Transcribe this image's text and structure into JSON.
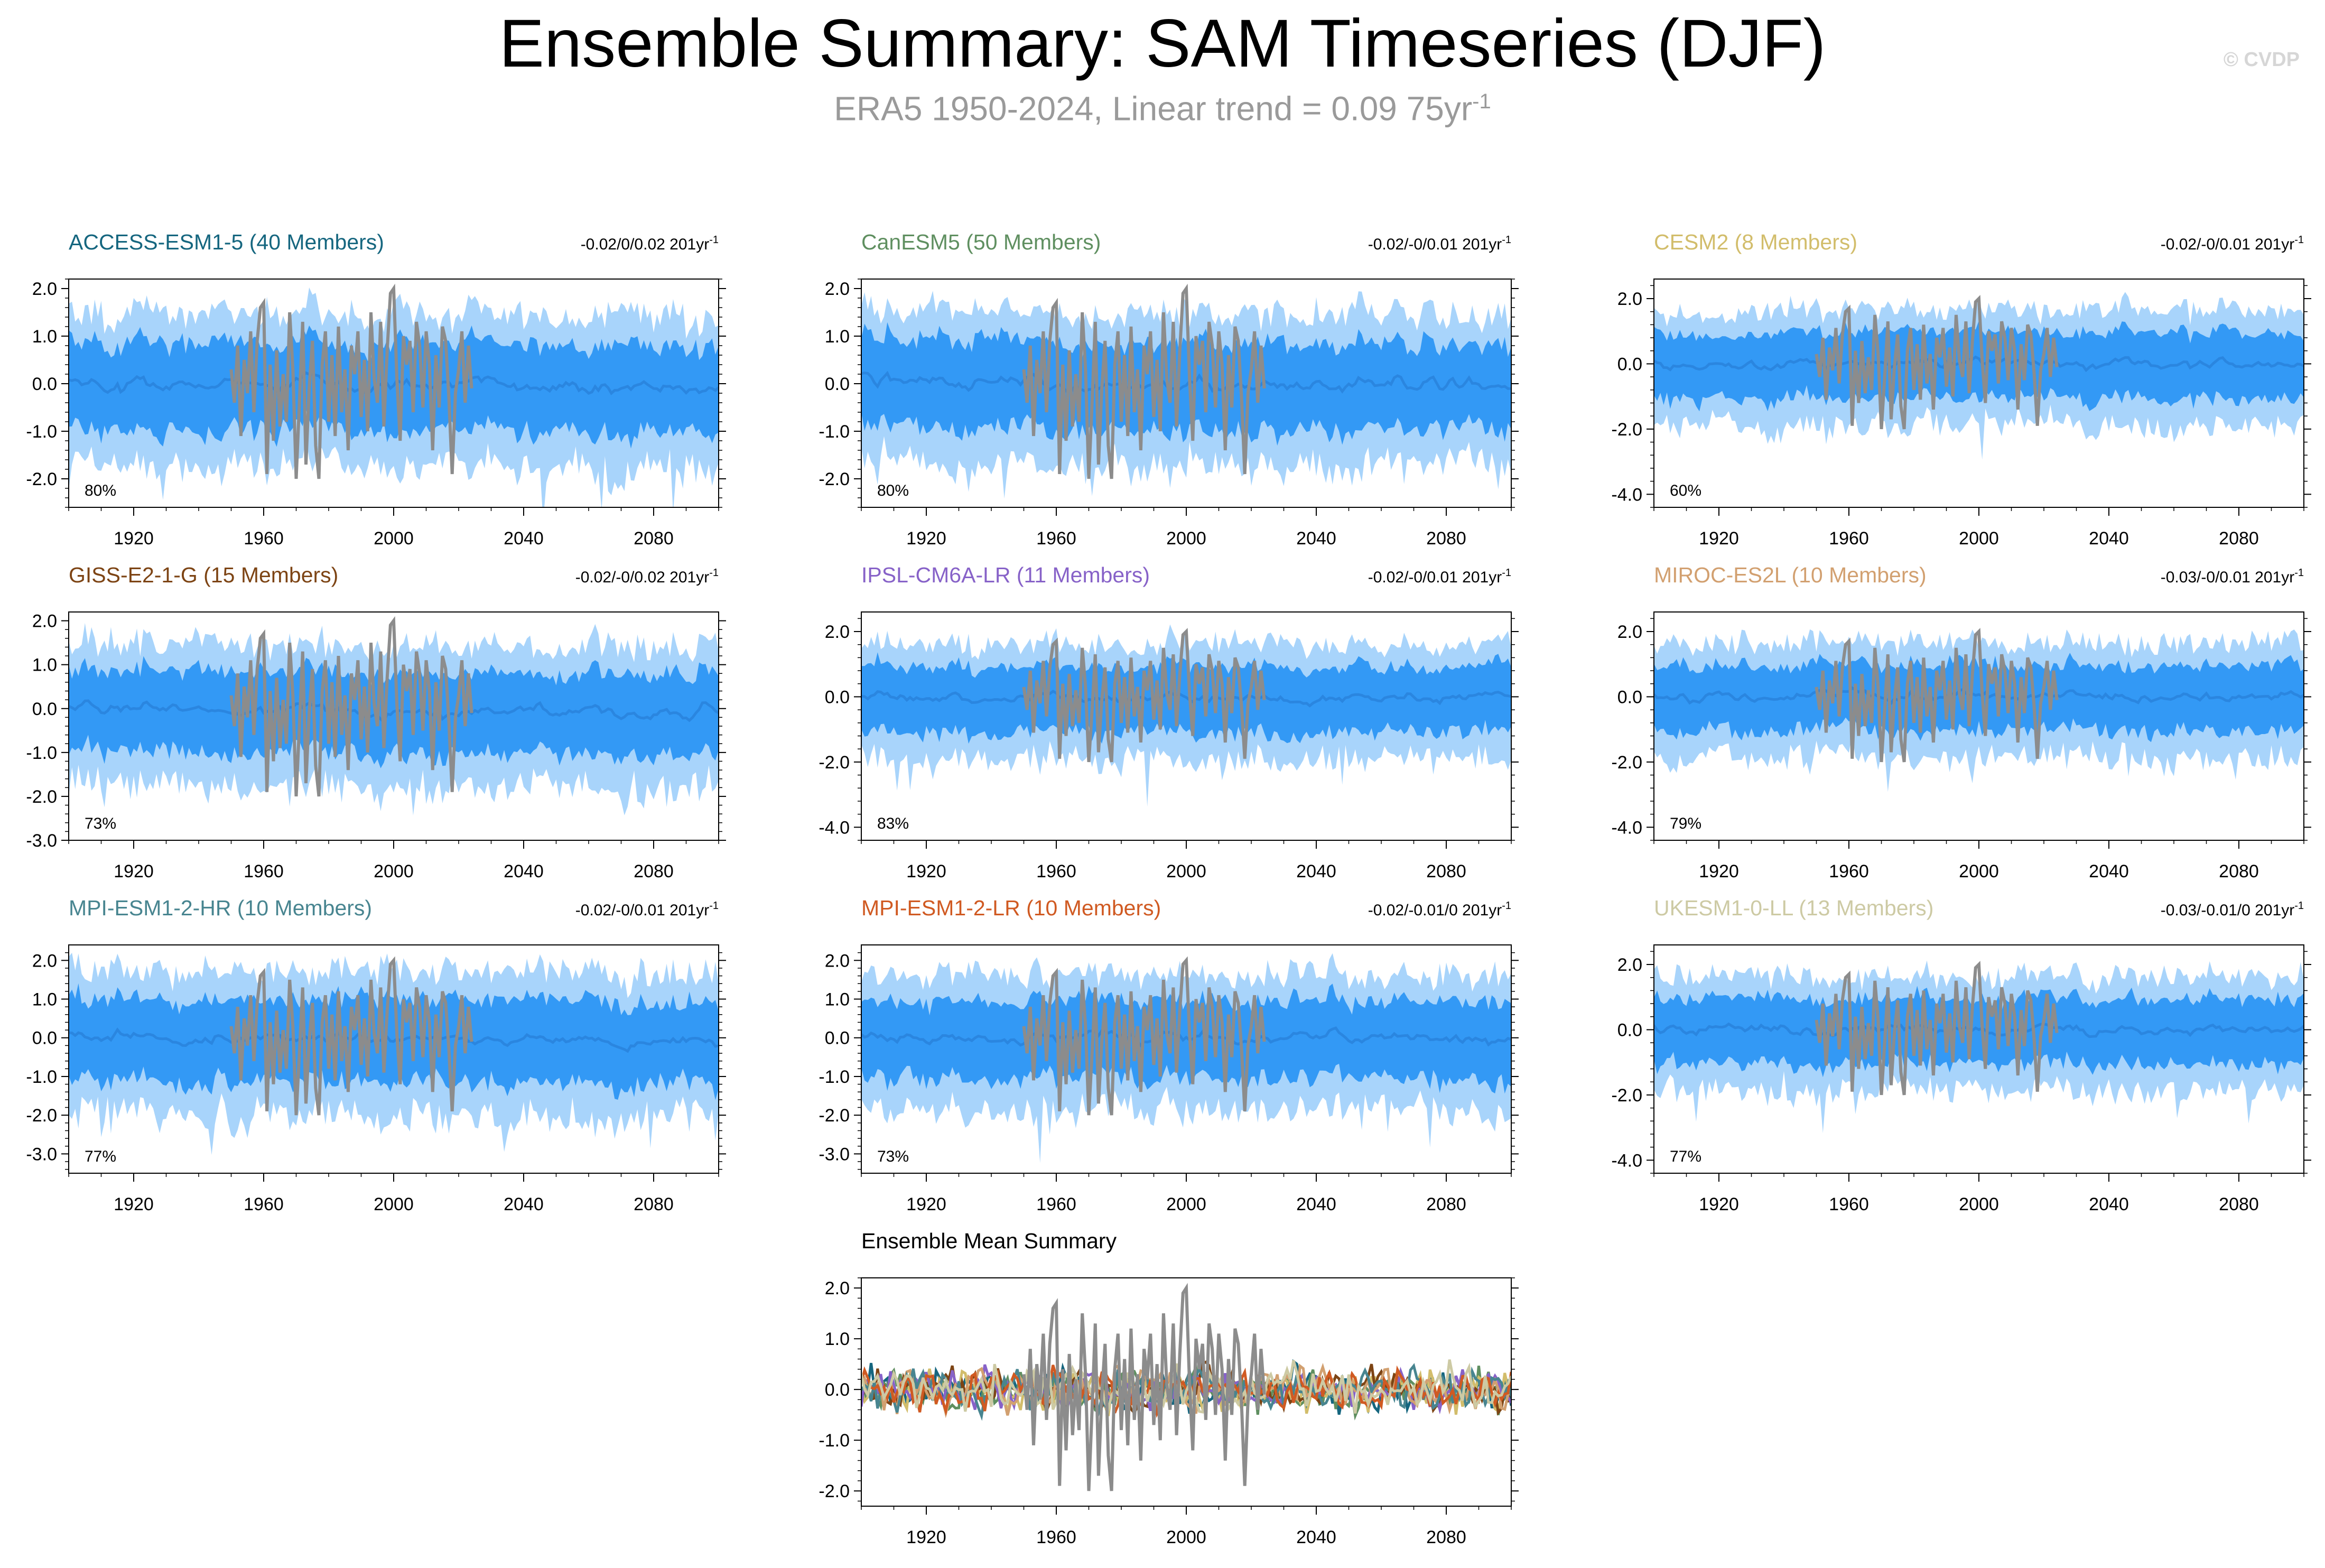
{
  "header": {
    "title": "Ensemble Summary: SAM Timeseries (DJF)",
    "subtitle_main": "ERA5 1950-2024, Linear trend = 0.09 75yr",
    "subtitle_exp": "-1",
    "watermark": "© CVDP"
  },
  "colors": {
    "band_outer": "#a8d4fb",
    "band_inner": "#3399f5",
    "ensemble_mean": "#2a86e0",
    "observations": "#8c8c8c",
    "axis": "#000000"
  },
  "trend_unit_exp": "-1",
  "chart_data": [
    {
      "type": "area",
      "name": "ACCESS-ESM1-5",
      "title": "ACCESS-ESM1-5 (40 Members)",
      "title_color": "#15667f",
      "trend": "-0.02/0/0.02 201yr",
      "percent": "80%",
      "xlim": [
        1900,
        2100
      ],
      "ylim": [
        -2.6,
        2.2
      ],
      "yticks": [
        2,
        1,
        0,
        -1,
        -2
      ],
      "ytick_labels": [
        "2.0",
        "1.0",
        "0.0",
        "-1.0",
        "-2.0"
      ],
      "xticks": [
        1920,
        1960,
        2000,
        2040,
        2080
      ],
      "xtick_labels": [
        "1920",
        "1960",
        "2000",
        "2040",
        "2080"
      ],
      "spread": 1.0,
      "drift": -0.05,
      "bias": 0.0
    },
    {
      "type": "area",
      "name": "CanESM5",
      "title": "CanESM5 (50 Members)",
      "title_color": "#5f8f60",
      "trend": "-0.02/-0/0.01 201yr",
      "percent": "80%",
      "xlim": [
        1900,
        2100
      ],
      "ylim": [
        -2.6,
        2.2
      ],
      "yticks": [
        2,
        1,
        0,
        -1,
        -2
      ],
      "ytick_labels": [
        "2.0",
        "1.0",
        "0.0",
        "-1.0",
        "-2.0"
      ],
      "xticks": [
        1920,
        1960,
        2000,
        2040,
        2080
      ],
      "xtick_labels": [
        "1920",
        "1960",
        "2000",
        "2040",
        "2080"
      ],
      "spread": 1.0,
      "drift": -0.2,
      "bias": 0.1
    },
    {
      "type": "area",
      "name": "CESM2",
      "title": "CESM2 (8 Members)",
      "title_color": "#d2bd6b",
      "trend": "-0.02/-0/0.01 201yr",
      "percent": "60%",
      "xlim": [
        1900,
        2100
      ],
      "ylim": [
        -4.4,
        2.6
      ],
      "yticks": [
        2,
        0,
        -2,
        -4
      ],
      "ytick_labels": [
        "2.0",
        "0.0",
        "-2.0",
        "-4.0"
      ],
      "xticks": [
        1920,
        1960,
        2000,
        2040,
        2080
      ],
      "xtick_labels": [
        "1920",
        "1960",
        "2000",
        "2040",
        "2080"
      ],
      "spread": 1.1,
      "drift": 0.0,
      "bias": 0.0
    },
    {
      "type": "area",
      "name": "GISS-E2-1-G",
      "title": "GISS-E2-1-G (15 Members)",
      "title_color": "#7d4414",
      "trend": "-0.02/-0/0.02 201yr",
      "percent": "73%",
      "xlim": [
        1900,
        2100
      ],
      "ylim": [
        -3.0,
        2.2
      ],
      "yticks": [
        2,
        1,
        0,
        -1,
        -2,
        -3
      ],
      "ytick_labels": [
        "2.0",
        "1.0",
        "0.0",
        "-1.0",
        "-2.0",
        "-3.0"
      ],
      "xticks": [
        1920,
        1960,
        2000,
        2040,
        2080
      ],
      "xtick_labels": [
        "1920",
        "1960",
        "2000",
        "2040",
        "2080"
      ],
      "spread": 1.0,
      "drift": -0.1,
      "bias": 0.0
    },
    {
      "type": "area",
      "name": "IPSL-CM6A-LR",
      "title": "IPSL-CM6A-LR (11 Members)",
      "title_color": "#8762c8",
      "trend": "-0.02/-0/0.01 201yr",
      "percent": "83%",
      "xlim": [
        1900,
        2100
      ],
      "ylim": [
        -4.4,
        2.6
      ],
      "yticks": [
        2,
        0,
        -2,
        -4
      ],
      "ytick_labels": [
        "2.0",
        "0.0",
        "-2.0",
        "-4.0"
      ],
      "xticks": [
        1920,
        1960,
        2000,
        2040,
        2080
      ],
      "xtick_labels": [
        "1920",
        "1960",
        "2000",
        "2040",
        "2080"
      ],
      "spread": 1.1,
      "drift": -0.05,
      "bias": 0.0
    },
    {
      "type": "area",
      "name": "MIROC-ES2L",
      "title": "MIROC-ES2L (10 Members)",
      "title_color": "#d2a070",
      "trend": "-0.03/-0/0.01 201yr",
      "percent": "79%",
      "xlim": [
        1900,
        2100
      ],
      "ylim": [
        -4.4,
        2.6
      ],
      "yticks": [
        2,
        0,
        -2,
        -4
      ],
      "ytick_labels": [
        "2.0",
        "0.0",
        "-2.0",
        "-4.0"
      ],
      "xticks": [
        1920,
        1960,
        2000,
        2040,
        2080
      ],
      "xtick_labels": [
        "1920",
        "1960",
        "2000",
        "2040",
        "2080"
      ],
      "spread": 1.1,
      "drift": 0.0,
      "bias": 0.0
    },
    {
      "type": "area",
      "name": "MPI-ESM1-2-HR",
      "title": "MPI-ESM1-2-HR (10 Members)",
      "title_color": "#488590",
      "trend": "-0.02/-0/0.01 201yr",
      "percent": "77%",
      "xlim": [
        1900,
        2100
      ],
      "ylim": [
        -3.5,
        2.4
      ],
      "yticks": [
        2,
        1,
        0,
        -1,
        -2,
        -3
      ],
      "ytick_labels": [
        "2.0",
        "1.0",
        "0.0",
        "-1.0",
        "-2.0",
        "-3.0"
      ],
      "xticks": [
        1920,
        1960,
        2000,
        2040,
        2080
      ],
      "xtick_labels": [
        "1920",
        "1960",
        "2000",
        "2040",
        "2080"
      ],
      "spread": 1.15,
      "drift": -0.05,
      "bias": 0.0
    },
    {
      "type": "area",
      "name": "MPI-ESM1-2-LR",
      "title": "MPI-ESM1-2-LR (10 Members)",
      "title_color": "#d05a22",
      "trend": "-0.02/-0.01/0 201yr",
      "percent": "73%",
      "xlim": [
        1900,
        2100
      ],
      "ylim": [
        -3.5,
        2.4
      ],
      "yticks": [
        2,
        1,
        0,
        -1,
        -2,
        -3
      ],
      "ytick_labels": [
        "2.0",
        "1.0",
        "0.0",
        "-1.0",
        "-2.0",
        "-3.0"
      ],
      "xticks": [
        1920,
        1960,
        2000,
        2040,
        2080
      ],
      "xtick_labels": [
        "1920",
        "1960",
        "2000",
        "2040",
        "2080"
      ],
      "spread": 1.1,
      "drift": -0.05,
      "bias": 0.0
    },
    {
      "type": "area",
      "name": "UKESM1-0-LL",
      "title": "UKESM1-0-LL (13 Members)",
      "title_color": "#cdcaa4",
      "trend": "-0.03/-0.01/0 201yr",
      "percent": "77%",
      "xlim": [
        1900,
        2100
      ],
      "ylim": [
        -4.4,
        2.6
      ],
      "yticks": [
        2,
        0,
        -2,
        -4
      ],
      "ytick_labels": [
        "2.0",
        "0.0",
        "-2.0",
        "-4.0"
      ],
      "xticks": [
        1920,
        1960,
        2000,
        2040,
        2080
      ],
      "xtick_labels": [
        "1920",
        "1960",
        "2000",
        "2040",
        "2080"
      ],
      "spread": 1.1,
      "drift": -0.1,
      "bias": 0.05
    },
    {
      "type": "line",
      "name": "Ensemble Mean Summary",
      "title": "Ensemble Mean Summary",
      "title_color": "#000000",
      "xlim": [
        1900,
        2100
      ],
      "ylim": [
        -2.3,
        2.2
      ],
      "yticks": [
        2,
        1,
        0,
        -1,
        -2
      ],
      "ytick_labels": [
        "2.0",
        "1.0",
        "0.0",
        "-1.0",
        "-2.0"
      ],
      "xticks": [
        1920,
        1960,
        2000,
        2040,
        2080
      ],
      "xtick_labels": [
        "1920",
        "1960",
        "2000",
        "2040",
        "2080"
      ],
      "series_names": [
        "ACCESS-ESM1-5",
        "CanESM5",
        "CESM2",
        "GISS-E2-1-G",
        "IPSL-CM6A-LR",
        "MIROC-ES2L",
        "MPI-ESM1-2-HR",
        "MPI-ESM1-2-LR",
        "UKESM1-0-LL",
        "ERA5"
      ],
      "series_colors": [
        "#15667f",
        "#5f8f60",
        "#d2bd6b",
        "#7d4414",
        "#8762c8",
        "#d2a070",
        "#488590",
        "#d05a22",
        "#cdcaa4",
        "#8c8c8c"
      ]
    }
  ],
  "observations": {
    "name": "ERA5",
    "years": [
      1950,
      1951,
      1952,
      1953,
      1954,
      1955,
      1956,
      1957,
      1958,
      1959,
      1960,
      1961,
      1962,
      1963,
      1964,
      1965,
      1966,
      1967,
      1968,
      1969,
      1970,
      1971,
      1972,
      1973,
      1974,
      1975,
      1976,
      1977,
      1978,
      1979,
      1980,
      1981,
      1982,
      1983,
      1984,
      1985,
      1986,
      1987,
      1988,
      1989,
      1990,
      1991,
      1992,
      1993,
      1994,
      1995,
      1996,
      1997,
      1998,
      1999,
      2000,
      2001,
      2002,
      2003,
      2004,
      2005,
      2006,
      2007,
      2008,
      2009,
      2010,
      2011,
      2012,
      2013,
      2014,
      2015,
      2016,
      2017,
      2018,
      2019,
      2020,
      2021,
      2022,
      2023,
      2024
    ],
    "values": [
      0.3,
      -0.4,
      0.8,
      -1.1,
      0.5,
      -0.2,
      1.1,
      -0.6,
      0.9,
      1.6,
      1.7,
      -1.9,
      0.4,
      -1.2,
      0.7,
      -0.9,
      0.2,
      -0.8,
      1.5,
      0.3,
      -2.0,
      -0.4,
      1.3,
      -1.7,
      -0.1,
      0.9,
      -1.3,
      -2.0,
      0.4,
      1.1,
      -0.8,
      0.6,
      -1.1,
      1.2,
      -0.6,
      0.3,
      -1.4,
      0.8,
      0.2,
      1.1,
      -0.7,
      0.5,
      -1.0,
      1.5,
      0.1,
      -0.4,
      1.3,
      -0.9,
      0.7,
      1.9,
      2.0,
      0.1,
      -1.2,
      1.0,
      0.4,
      0.9,
      -0.6,
      1.3,
      0.8,
      -0.5,
      1.1,
      0.4,
      -1.4,
      0.6,
      -0.5,
      1.2,
      0.9,
      -0.3,
      -1.9,
      -0.2,
      0.3,
      1.1,
      -0.4,
      0.8,
      -0.1
    ]
  }
}
